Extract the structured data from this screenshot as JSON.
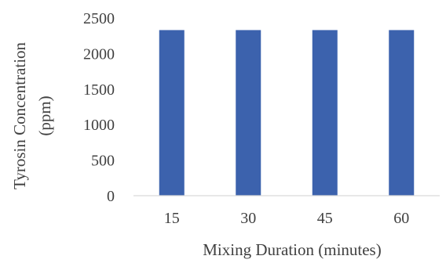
{
  "chart_data": {
    "type": "bar",
    "categories": [
      "15",
      "30",
      "45",
      "60"
    ],
    "series": [
      {
        "values": [
          2330,
          2330,
          2330,
          2330
        ]
      }
    ],
    "title": "",
    "xlabel": "Mixing Duration (minutes)",
    "ylabel_line1": "Tyrosin Concentration",
    "ylabel_line2": "(ppm)",
    "ylim": [
      0,
      2500
    ],
    "yticks": [
      "0",
      "500",
      "1000",
      "1500",
      "2000",
      "2500"
    ],
    "grid": false,
    "legend": "none",
    "bar_color": "#3c62ad",
    "axis_color": "#d9d9d9"
  }
}
